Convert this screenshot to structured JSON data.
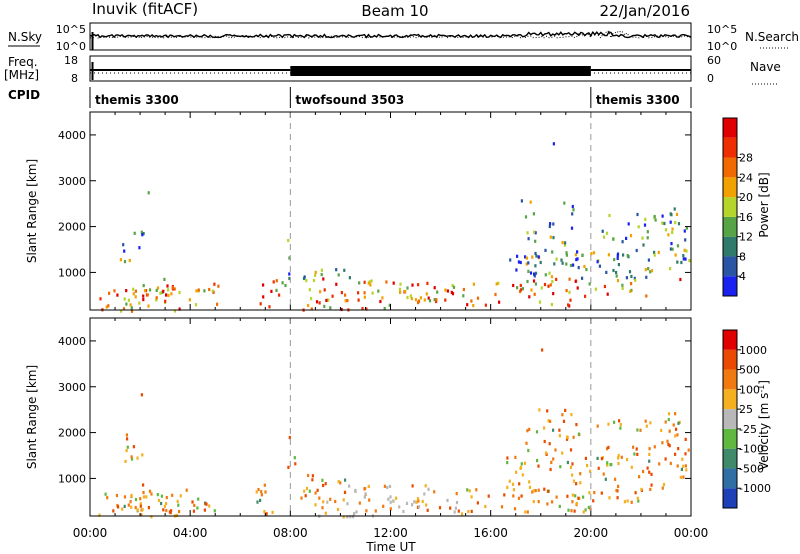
{
  "chart_data": {
    "type": "heatmap",
    "header": {
      "title_left": "Inuvik (fitACF)",
      "title_center": "Beam 10",
      "title_right": "22/Jan/2016"
    },
    "noise_panel": {
      "ylabel": "N.Sky",
      "right_label": "N.Search",
      "left_ticks": [
        "10^5",
        "10^0"
      ],
      "right_ticks": [
        "10^5",
        "10^0"
      ]
    },
    "freq_panel": {
      "ylabel": "Freq.",
      "unit": "[MHz]",
      "left_ticks": [
        "18",
        "8"
      ],
      "right_label": "Nave",
      "right_ticks": [
        "60",
        "0"
      ]
    },
    "cpid": {
      "label": "CPID",
      "segments": [
        {
          "name": "themis 3300",
          "start_hour": 0,
          "end_hour": 8
        },
        {
          "name": "twofsound 3503",
          "start_hour": 8,
          "end_hour": 20
        },
        {
          "name": "themis 3300",
          "start_hour": 20,
          "end_hour": 24
        }
      ]
    },
    "x": {
      "label": "Time UT",
      "range_hours": [
        0,
        24
      ],
      "tick_labels": [
        "00:00",
        "04:00",
        "08:00",
        "12:00",
        "16:00",
        "20:00",
        "00:00"
      ]
    },
    "y": {
      "label": "Slant Range [km]",
      "range": [
        180,
        4500
      ],
      "tick_values": [
        1000,
        2000,
        3000,
        4000
      ],
      "tick_labels": [
        "1000",
        "2000",
        "3000",
        "4000"
      ]
    },
    "dashed_markers_hours": [
      8,
      20
    ],
    "panels": [
      {
        "name": "power",
        "colorbar_label": "Power [dB]",
        "colorbar_ticks": [
          "4",
          "8",
          "12",
          "16",
          "20",
          "24",
          "28"
        ],
        "colorbar_colors": [
          "#1a22f0",
          "#2a55a5",
          "#2f7a6a",
          "#57a447",
          "#b5d52a",
          "#f2a200",
          "#f06a00",
          "#ee2d00",
          "#e00000"
        ]
      },
      {
        "name": "velocity",
        "colorbar_label": "Velocity [m s^-1]",
        "colorbar_ticks": [
          "1000",
          "500",
          "100",
          "25",
          "-25",
          "-100",
          "-500",
          "-1000"
        ],
        "colorbar_colors": [
          "#1d3fb8",
          "#2f6fa6",
          "#3f8a6a",
          "#5fb840",
          "#b8b8b8",
          "#f5b020",
          "#f07a10",
          "#ea4a00",
          "#e00000"
        ]
      }
    ]
  }
}
